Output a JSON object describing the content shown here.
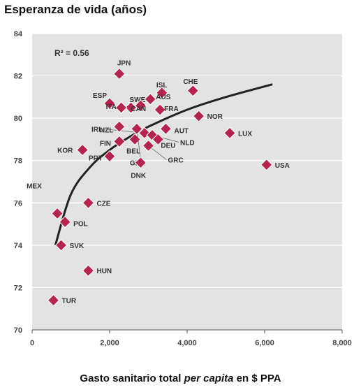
{
  "chart_data": {
    "type": "scatter",
    "title": "Esperanza de vida (años)",
    "xlabel_parts": [
      "Gasto sanitario total ",
      "per capita",
      " en $ PPA"
    ],
    "annotation": "R² = 0.56",
    "xlim": [
      0,
      8000
    ],
    "ylim": [
      70,
      84
    ],
    "x_ticks": [
      0,
      2000,
      4000,
      6000,
      8000
    ],
    "x_tick_labels": [
      "0",
      "2,000",
      "4,000",
      "6,000",
      "8,000"
    ],
    "y_ticks": [
      70,
      72,
      74,
      76,
      78,
      80,
      82,
      84
    ],
    "y_tick_labels": [
      "70",
      "72",
      "74",
      "76",
      "78",
      "80",
      "82",
      "84"
    ],
    "grid": "horizontal",
    "marker_color": "#b5234f",
    "points": [
      {
        "label": "JPN",
        "x": 2250,
        "y": 82.1
      },
      {
        "label": "ESP",
        "x": 2000,
        "y": 80.7
      },
      {
        "label": "SWE",
        "x": 2550,
        "y": 80.5
      },
      {
        "label": "ISL",
        "x": 3350,
        "y": 81.2
      },
      {
        "label": "CHE",
        "x": 4150,
        "y": 81.3
      },
      {
        "label": "AUS",
        "x": 3050,
        "y": 80.9
      },
      {
        "label": "ITA",
        "x": 2300,
        "y": 80.5
      },
      {
        "label": "FRA",
        "x": 3300,
        "y": 80.4
      },
      {
        "label": "CAN",
        "x": 2800,
        "y": 80.6
      },
      {
        "label": "NOR",
        "x": 4300,
        "y": 80.1
      },
      {
        "label": "IRL",
        "x": 2900,
        "y": 79.3
      },
      {
        "label": "NZL",
        "x": 2250,
        "y": 79.6
      },
      {
        "label": "AUT",
        "x": 3450,
        "y": 79.5
      },
      {
        "label": "LUX",
        "x": 5100,
        "y": 79.3
      },
      {
        "label": "NLD",
        "x": 3100,
        "y": 79.2
      },
      {
        "label": "FIN",
        "x": 2250,
        "y": 78.9
      },
      {
        "label": "DEU",
        "x": 3250,
        "y": 79.0
      },
      {
        "label": "KOR",
        "x": 1300,
        "y": 78.5
      },
      {
        "label": "PRT",
        "x": 2000,
        "y": 78.2
      },
      {
        "label": "BEL",
        "x": 2650,
        "y": 79.0
      },
      {
        "label": "GBR",
        "x": 2700,
        "y": 79.5
      },
      {
        "label": "DNK",
        "x": 2800,
        "y": 77.9
      },
      {
        "label": "GRC",
        "x": 3000,
        "y": 78.7
      },
      {
        "label": "USA",
        "x": 6050,
        "y": 77.8
      },
      {
        "label": "MEX",
        "x": 650,
        "y": 75.5
      },
      {
        "label": "CZE",
        "x": 1450,
        "y": 76.0
      },
      {
        "label": "POL",
        "x": 850,
        "y": 75.1
      },
      {
        "label": "SVK",
        "x": 750,
        "y": 74.0
      },
      {
        "label": "HUN",
        "x": 1450,
        "y": 72.8
      },
      {
        "label": "TUR",
        "x": 550,
        "y": 71.4
      }
    ],
    "trendline": [
      {
        "x": 600,
        "y": 74.0
      },
      {
        "x": 1000,
        "y": 76.4
      },
      {
        "x": 1500,
        "y": 77.7
      },
      {
        "x": 2000,
        "y": 78.5
      },
      {
        "x": 2500,
        "y": 79.1
      },
      {
        "x": 3000,
        "y": 79.6
      },
      {
        "x": 4000,
        "y": 80.4
      },
      {
        "x": 5000,
        "y": 81.0
      },
      {
        "x": 6200,
        "y": 81.6
      }
    ]
  }
}
